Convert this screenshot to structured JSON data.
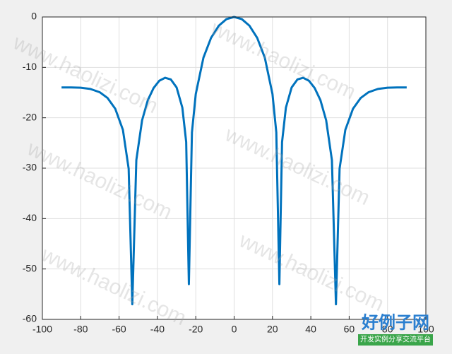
{
  "chart_data": {
    "type": "line",
    "x": [
      -90,
      -85,
      -80,
      -75,
      -70,
      -66,
      -62,
      -58,
      -55,
      -53.1,
      -51,
      -48,
      -45,
      -42,
      -39,
      -36,
      -33,
      -30,
      -27,
      -25,
      -23.6,
      -22,
      -20,
      -16,
      -12,
      -8,
      -4,
      0,
      4,
      8,
      12,
      16,
      20,
      22,
      23.6,
      25,
      27,
      30,
      33,
      36,
      39,
      42,
      45,
      48,
      51,
      53.1,
      55,
      58,
      62,
      66,
      70,
      75,
      80,
      85,
      90
    ],
    "series": [
      {
        "color": "#0072bd",
        "values": [
          -13.98,
          -13.99,
          -14.04,
          -14.28,
          -14.95,
          -16.08,
          -18.2,
          -22.4,
          -30.1,
          -57,
          -28.4,
          -20.5,
          -16.5,
          -14.1,
          -12.65,
          -12.06,
          -12.4,
          -13.98,
          -18,
          -24.8,
          -53,
          -22.9,
          -15.29,
          -8.07,
          -4.12,
          -1.74,
          -0.43,
          0,
          -0.43,
          -1.74,
          -4.12,
          -8.07,
          -15.29,
          -22.9,
          -53,
          -24.8,
          -18,
          -13.98,
          -12.4,
          -12.06,
          -12.65,
          -14.1,
          -16.5,
          -20.5,
          -28.4,
          -57,
          -30.1,
          -22.4,
          -18.2,
          -16.08,
          -14.95,
          -14.28,
          -14.04,
          -13.99,
          -13.98
        ]
      }
    ],
    "xlim": [
      -100,
      100
    ],
    "xticks": [
      -100,
      -80,
      -60,
      -40,
      -20,
      0,
      20,
      40,
      60,
      80,
      100
    ],
    "ylim": [
      -60,
      0
    ],
    "yticks": [
      0,
      -10,
      -20,
      -30,
      -40,
      -50,
      -60
    ],
    "grid": true
  },
  "watermark": "www.haolizi.com",
  "logo": {
    "title": "好例子网",
    "subtitle": "开发实例分享交流平台"
  }
}
